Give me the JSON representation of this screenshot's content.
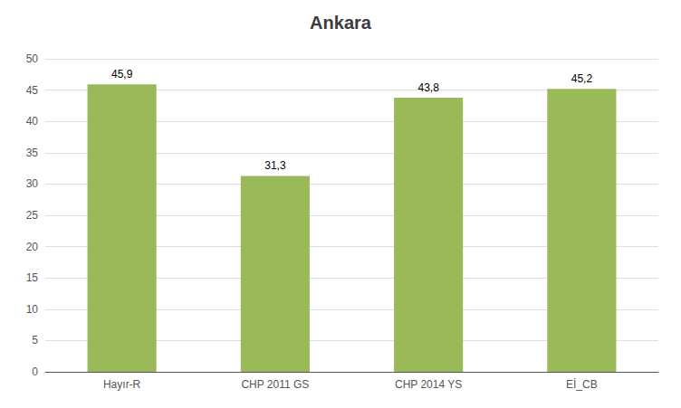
{
  "chart_data": {
    "type": "bar",
    "title": "Ankara",
    "categories": [
      "Hayır-R",
      "CHP 2011 GS",
      "CHP 2014 YS",
      "Eİ_CB"
    ],
    "values": [
      45.9,
      31.3,
      43.8,
      45.2
    ],
    "value_labels": [
      "45,9",
      "31,3",
      "43,8",
      "45,2"
    ],
    "data_labels": true,
    "color": "#9ABA59",
    "ylim": [
      0,
      50
    ],
    "yticks": [
      0,
      5,
      10,
      15,
      20,
      25,
      30,
      35,
      40,
      45,
      50
    ],
    "grid": true
  }
}
